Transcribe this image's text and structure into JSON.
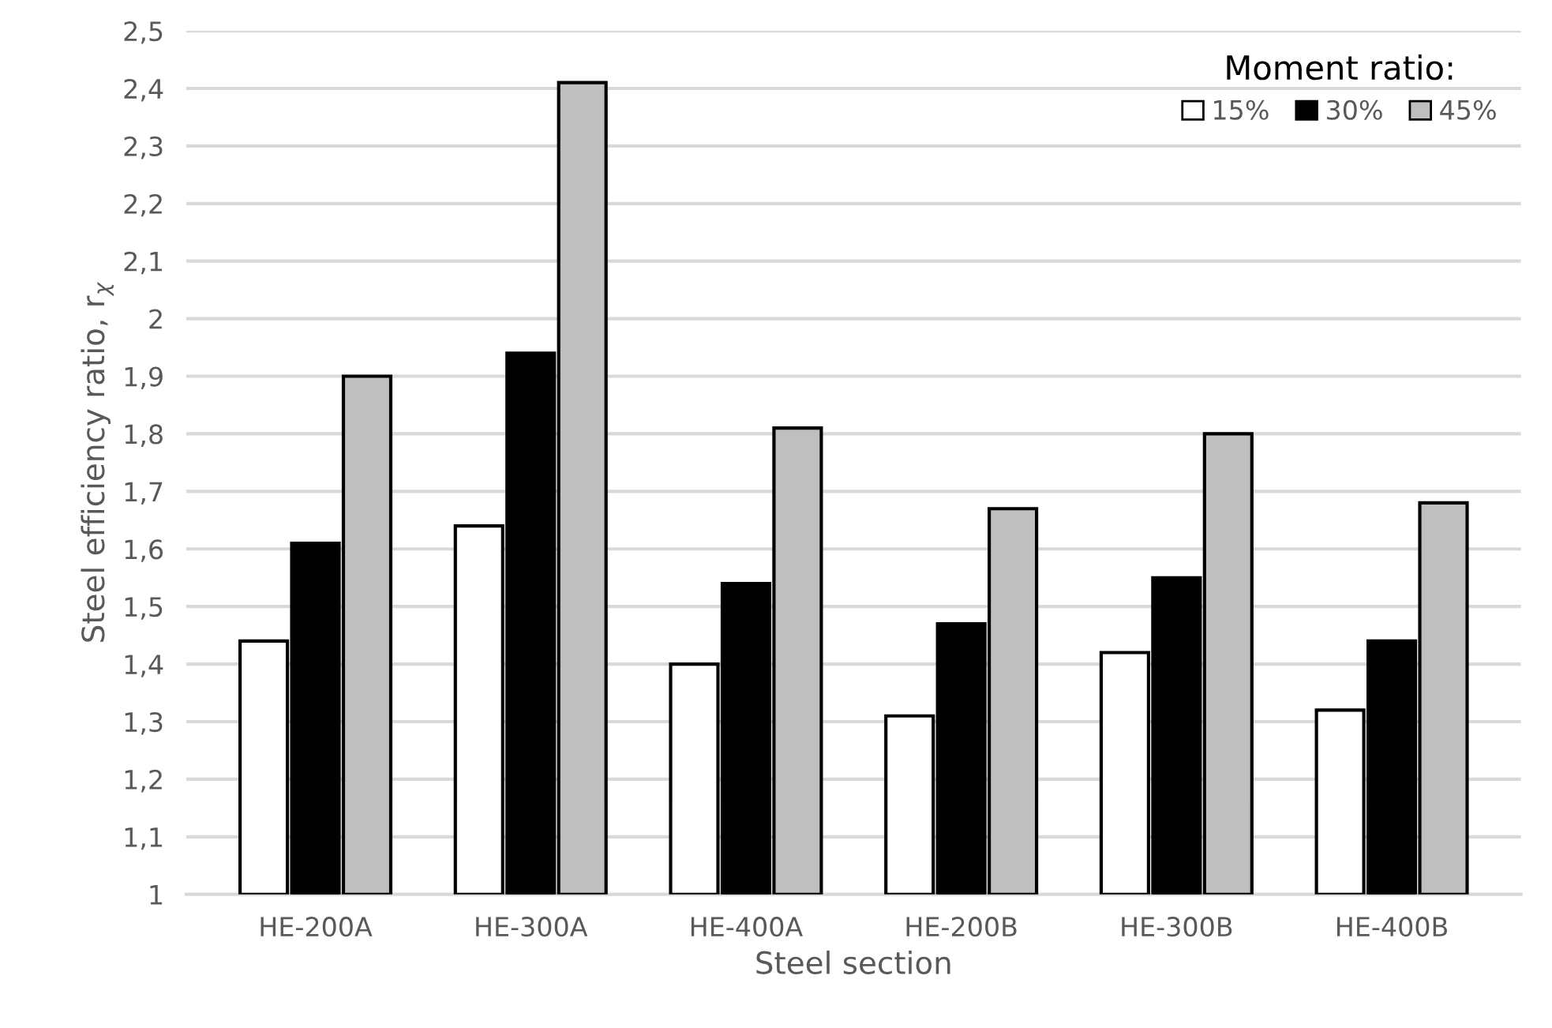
{
  "chart_data": {
    "type": "bar",
    "xlabel": "Steel section",
    "ylabel": "Steel efficiency ratio, r$_{χ}$",
    "categories": [
      "HE-200A",
      "HE-300A",
      "HE-400A",
      "HE-200B",
      "HE-300B",
      "HE-400B"
    ],
    "series": [
      {
        "name": "15%",
        "color": "#ffffff",
        "values": [
          1.44,
          1.64,
          1.4,
          1.31,
          1.42,
          1.32
        ]
      },
      {
        "name": "30%",
        "color": "#000000",
        "values": [
          1.61,
          1.94,
          1.54,
          1.47,
          1.55,
          1.44
        ]
      },
      {
        "name": "45%",
        "color": "#bfbfbf",
        "values": [
          1.9,
          2.41,
          1.81,
          1.67,
          1.8,
          1.68
        ]
      }
    ],
    "legend_title": "Moment ratio:",
    "legend": "top right",
    "grid": "y",
    "ylim": [
      1,
      2.5
    ],
    "yticks": [
      1,
      {
        "value": 1.1,
        "label": "1,1"
      },
      {
        "value": 1.2,
        "label": "1,2"
      },
      {
        "value": 1.3,
        "label": "1,3"
      },
      {
        "value": 1.4,
        "label": "1,4"
      },
      {
        "value": 1.5,
        "label": "1,5"
      },
      {
        "value": 1.6,
        "label": "1,6"
      },
      {
        "value": 1.7,
        "label": "1,7"
      },
      {
        "value": 1.8,
        "label": "1,8"
      },
      {
        "value": 1.9,
        "label": "1,9"
      },
      2,
      {
        "value": 2.1,
        "label": "2,1"
      },
      {
        "value": 2.2,
        "label": "2,2"
      },
      {
        "value": 2.3,
        "label": "2,3"
      },
      {
        "value": 2.4,
        "label": "2,4"
      },
      {
        "value": 2.5,
        "label": "2,5"
      }
    ]
  }
}
